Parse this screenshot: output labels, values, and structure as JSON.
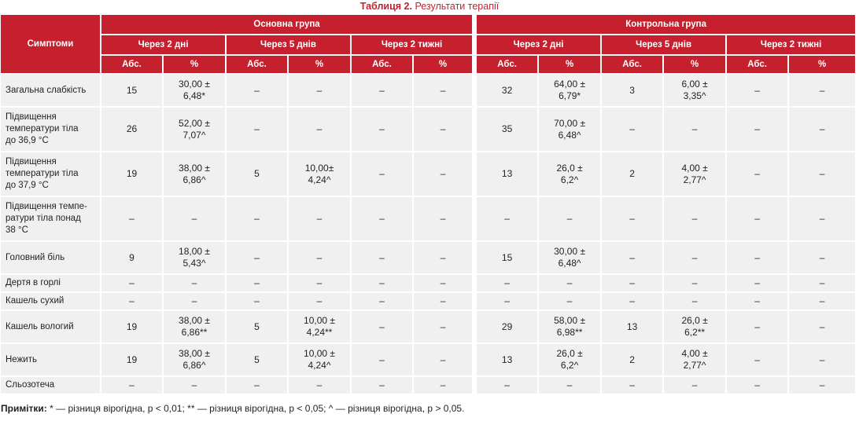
{
  "caption": {
    "label": "Таблиця 2.",
    "text": "Результати терапії"
  },
  "header": {
    "symptoms": "Симптоми",
    "groups": [
      "Основна група",
      "Контрольна група"
    ],
    "periods": [
      "Через 2 дні",
      "Через 5 днів",
      "Через 2 тижні"
    ],
    "abs": "Абс.",
    "pct": "%"
  },
  "rows": [
    {
      "symptom": "Загальна слабкість",
      "cells": [
        "15",
        "30,00 ±\n6,48*",
        "–",
        "–",
        "–",
        "–",
        "32",
        "64,00 ±\n6,79*",
        "3",
        "6,00 ±\n3,35^",
        "–",
        "–"
      ]
    },
    {
      "symptom": "Підвищення\nтемператури тіла\nдо 36,9 °С",
      "cells": [
        "26",
        "52,00 ±\n7,07^",
        "–",
        "–",
        "–",
        "–",
        "35",
        "70,00 ±\n6,48^",
        "–",
        "–",
        "–",
        "–"
      ]
    },
    {
      "symptom": "Підвищення\nтемператури тіла\nдо 37,9 °С",
      "cells": [
        "19",
        "38,00 ±\n6,86^",
        "5",
        "10,00±\n4,24^",
        "–",
        "–",
        "13",
        "26,0 ±\n6,2^",
        "2",
        "4,00 ±\n2,77^",
        "–",
        "–"
      ]
    },
    {
      "symptom": "Підвищення темпе-\nратури тіла понад\n38 °С",
      "cells": [
        "–",
        "–",
        "–",
        "–",
        "–",
        "–",
        "–",
        "–",
        "–",
        "–",
        "–",
        "–"
      ]
    },
    {
      "symptom": "Головний біль",
      "cells": [
        "9",
        "18,00 ±\n5,43^",
        "–",
        "–",
        "–",
        "–",
        "15",
        "30,00 ±\n6,48^",
        "–",
        "–",
        "–",
        "–"
      ]
    },
    {
      "symptom": "Дертя в горлі",
      "cells": [
        "–",
        "–",
        "–",
        "–",
        "–",
        "–",
        "–",
        "–",
        "–",
        "–",
        "–",
        "–"
      ]
    },
    {
      "symptom": "Кашель сухий",
      "cells": [
        "–",
        "–",
        "–",
        "–",
        "–",
        "–",
        "–",
        "–",
        "–",
        "–",
        "–",
        "–"
      ]
    },
    {
      "symptom": "Кашель вологий",
      "cells": [
        "19",
        "38,00 ±\n6,86**",
        "5",
        "10,00 ±\n4,24**",
        "–",
        "–",
        "29",
        "58,00 ±\n6,98**",
        "13",
        "26,0 ±\n6,2**",
        "–",
        "–"
      ]
    },
    {
      "symptom": "Нежить",
      "cells": [
        "19",
        "38,00 ±\n6,86^",
        "5",
        "10,00 ±\n4,24^",
        "–",
        "–",
        "13",
        "26,0 ±\n6,2^",
        "2",
        "4,00 ±\n2,77^",
        "–",
        "–"
      ]
    },
    {
      "symptom": "Сльозотеча",
      "cells": [
        "–",
        "–",
        "–",
        "–",
        "–",
        "–",
        "–",
        "–",
        "–",
        "–",
        "–",
        "–"
      ]
    }
  ],
  "notes": {
    "label": "Примітки:",
    "text": "* — різниця вірогідна, р < 0,01; ** — різниця вірогідна, р < 0,05; ^ — різниця вірогідна, р > 0,05."
  }
}
